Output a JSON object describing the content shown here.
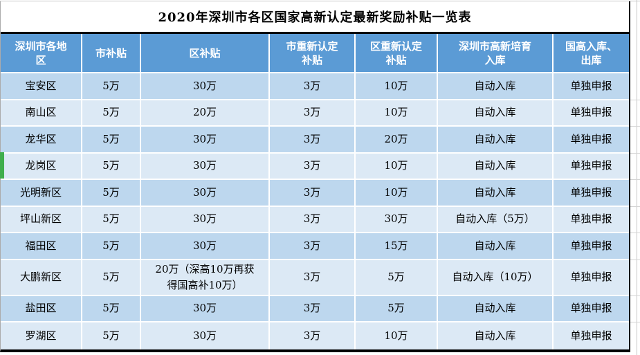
{
  "title": "2020年深圳市各区国家高新认定最新奖励补贴一览表",
  "table": {
    "headers": [
      "深圳市各地\n区",
      "市补贴",
      "区补贴",
      "市重新认定\n补贴",
      "区重新认定\n补贴",
      "深圳市高新培育\n入库",
      "国高入库、\n出库"
    ],
    "rows": [
      [
        "宝安区",
        "5万",
        "30万",
        "3万",
        "10万",
        "自动入库",
        "单独申报"
      ],
      [
        "南山区",
        "5万",
        "20万",
        "3万",
        "10万",
        "自动入库",
        "单独申报"
      ],
      [
        "龙华区",
        "5万",
        "30万",
        "3万",
        "20万",
        "自动入库",
        "单独申报"
      ],
      [
        "龙岗区",
        "5万",
        "30万",
        "3万",
        "10万",
        "自动入库",
        "单独申报"
      ],
      [
        "光明新区",
        "5万",
        "30万",
        "3万",
        "10万",
        "自动入库",
        "单独申报"
      ],
      [
        "坪山新区",
        "5万",
        "30万",
        "3万",
        "30万",
        "自动入库（5万）",
        "单独申报"
      ],
      [
        "福田区",
        "5万",
        "30万",
        "3万",
        "15万",
        "自动入库",
        "单独申报"
      ],
      [
        "大鹏新区",
        "5万",
        "20万（深高10万再获\n得国高补10万）",
        "3万",
        "5万",
        "自动入库（10万）",
        "单独申报"
      ],
      [
        "盐田区",
        "5万",
        "30万",
        "3万",
        "5万",
        "自动入库",
        "单独申报"
      ],
      [
        "罗湖区",
        "5万",
        "30万",
        "3万",
        "10万",
        "自动入库",
        "单独申报"
      ]
    ],
    "highlighted_row": "龙岗区"
  },
  "colors": {
    "header_bg": "#5B9BD5",
    "header_text": "#FFFFFF",
    "row_odd": "#BDD7EE",
    "row_even": "#DCE9F5",
    "marker_green": "#3FAE4C",
    "border_dark": "#000000",
    "grid_grey": "#ABABAB",
    "title_text": "#000000",
    "cell_text": "#000000"
  }
}
